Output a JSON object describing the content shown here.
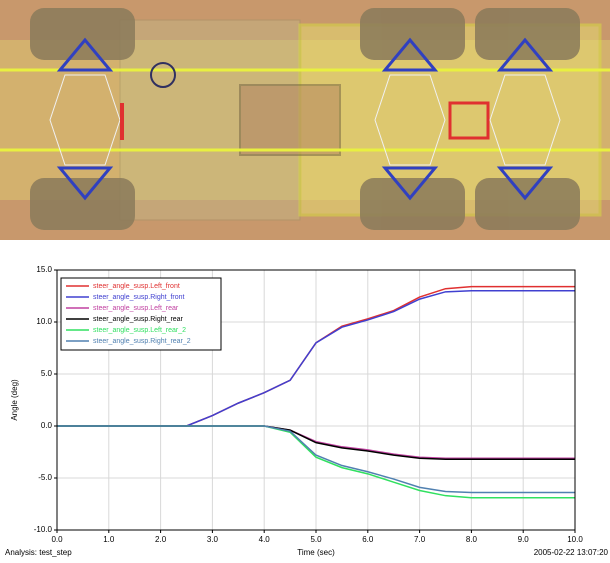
{
  "chart_data": {
    "type": "line",
    "x_label": "Time (sec)",
    "y_label": "Angle (deg)",
    "footer_left": "Analysis: test_step",
    "footer_right": "2005-02-22 13:07:20",
    "x": [
      0,
      0.5,
      1,
      1.5,
      2,
      2.5,
      3,
      3.5,
      4,
      4.5,
      5,
      5.5,
      6,
      6.5,
      7,
      7.5,
      8,
      8.5,
      9,
      9.5,
      10
    ],
    "xlim": [
      0,
      10
    ],
    "xticks": [
      {
        "value": 0,
        "label": "0.0"
      },
      {
        "value": 1,
        "label": "1.0"
      },
      {
        "value": 2,
        "label": "2.0"
      },
      {
        "value": 3,
        "label": "3.0"
      },
      {
        "value": 4,
        "label": "4.0"
      },
      {
        "value": 5,
        "label": "5.0"
      },
      {
        "value": 6,
        "label": "6.0"
      },
      {
        "value": 7,
        "label": "7.0"
      },
      {
        "value": 8,
        "label": "8.0"
      },
      {
        "value": 9,
        "label": "9.0"
      },
      {
        "value": 10,
        "label": "10.0"
      }
    ],
    "ylim": [
      -10,
      15
    ],
    "yticks": [
      {
        "value": 15,
        "label": "15.0"
      },
      {
        "value": 10,
        "label": "10.0"
      },
      {
        "value": 5,
        "label": "5.0"
      },
      {
        "value": 0,
        "label": "0.0"
      },
      {
        "value": -5,
        "label": "-5.0"
      },
      {
        "value": -10,
        "label": "-10.0"
      }
    ],
    "grid": true,
    "legend": "upper left",
    "series": [
      {
        "name": "steer_angle_susp.Left_front",
        "color": "#e03030",
        "values": [
          0,
          0,
          0,
          0,
          0,
          0,
          1.0,
          2.2,
          3.2,
          4.4,
          8.0,
          9.6,
          10.3,
          11.1,
          12.4,
          13.2,
          13.4,
          13.4,
          13.4,
          13.4,
          13.4
        ]
      },
      {
        "name": "steer_angle_susp.Right_front",
        "color": "#4040d0",
        "values": [
          0,
          0,
          0,
          0,
          0,
          0,
          1.0,
          2.2,
          3.2,
          4.4,
          8.0,
          9.5,
          10.2,
          11.0,
          12.2,
          12.9,
          13.0,
          13.0,
          13.0,
          13.0,
          13.0
        ]
      },
      {
        "name": "steer_angle_susp.Left_rear",
        "color": "#c040a0",
        "values": [
          0,
          0,
          0,
          0,
          0,
          0,
          0,
          0,
          0,
          -0.4,
          -1.5,
          -2.0,
          -2.3,
          -2.7,
          -3.0,
          -3.1,
          -3.1,
          -3.1,
          -3.1,
          -3.1,
          -3.1
        ]
      },
      {
        "name": "steer_angle_susp.Right_rear",
        "color": "#000000",
        "values": [
          0,
          0,
          0,
          0,
          0,
          0,
          0,
          0,
          0,
          -0.4,
          -1.6,
          -2.1,
          -2.4,
          -2.8,
          -3.1,
          -3.2,
          -3.2,
          -3.2,
          -3.2,
          -3.2,
          -3.2
        ]
      },
      {
        "name": "steer_angle_susp.Left_rear_2",
        "color": "#30e060",
        "values": [
          0,
          0,
          0,
          0,
          0,
          0,
          0,
          0,
          0,
          -0.6,
          -3.0,
          -4.0,
          -4.6,
          -5.4,
          -6.2,
          -6.7,
          -6.9,
          -6.9,
          -6.9,
          -6.9,
          -6.9
        ]
      },
      {
        "name": "steer_angle_susp.Right_rear_2",
        "color": "#5080b0",
        "values": [
          0,
          0,
          0,
          0,
          0,
          0,
          0,
          0,
          0,
          -0.5,
          -2.8,
          -3.8,
          -4.4,
          -5.1,
          -5.9,
          -6.3,
          -6.4,
          -6.4,
          -6.4,
          -6.4,
          -6.4
        ]
      }
    ]
  }
}
